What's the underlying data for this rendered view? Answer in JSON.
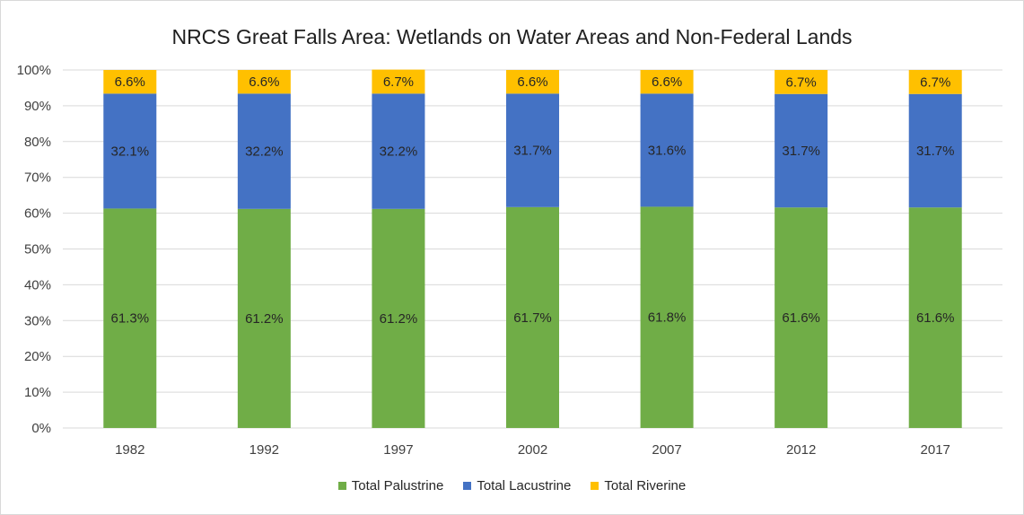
{
  "chart_data": {
    "type": "bar",
    "stacked": true,
    "title": "NRCS Great Falls Area: Wetlands on Water Areas and Non-Federal Lands",
    "xlabel": "",
    "ylabel": "",
    "ylim": [
      0,
      100
    ],
    "y_ticks": [
      "0%",
      "10%",
      "20%",
      "30%",
      "40%",
      "50%",
      "60%",
      "70%",
      "80%",
      "90%",
      "100%"
    ],
    "grid": true,
    "legend_position": "bottom",
    "categories": [
      "1982",
      "1992",
      "1997",
      "2002",
      "2007",
      "2012",
      "2017"
    ],
    "series": [
      {
        "name": "Total Palustrine",
        "color": "#70ad47",
        "values": [
          61.3,
          61.2,
          61.2,
          61.7,
          61.8,
          61.6,
          61.6
        ],
        "labels": [
          "61.3%",
          "61.2%",
          "61.2%",
          "61.7%",
          "61.8%",
          "61.6%",
          "61.6%"
        ]
      },
      {
        "name": "Total Lacustrine",
        "color": "#4472c4",
        "values": [
          32.1,
          32.2,
          32.2,
          31.7,
          31.6,
          31.7,
          31.7
        ],
        "labels": [
          "32.1%",
          "32.2%",
          "32.2%",
          "31.7%",
          "31.6%",
          "31.7%",
          "31.7%"
        ]
      },
      {
        "name": "Total Riverine",
        "color": "#ffc000",
        "values": [
          6.6,
          6.6,
          6.7,
          6.6,
          6.6,
          6.7,
          6.7
        ],
        "labels": [
          "6.6%",
          "6.6%",
          "6.7%",
          "6.6%",
          "6.6%",
          "6.7%",
          "6.7%"
        ]
      }
    ]
  }
}
